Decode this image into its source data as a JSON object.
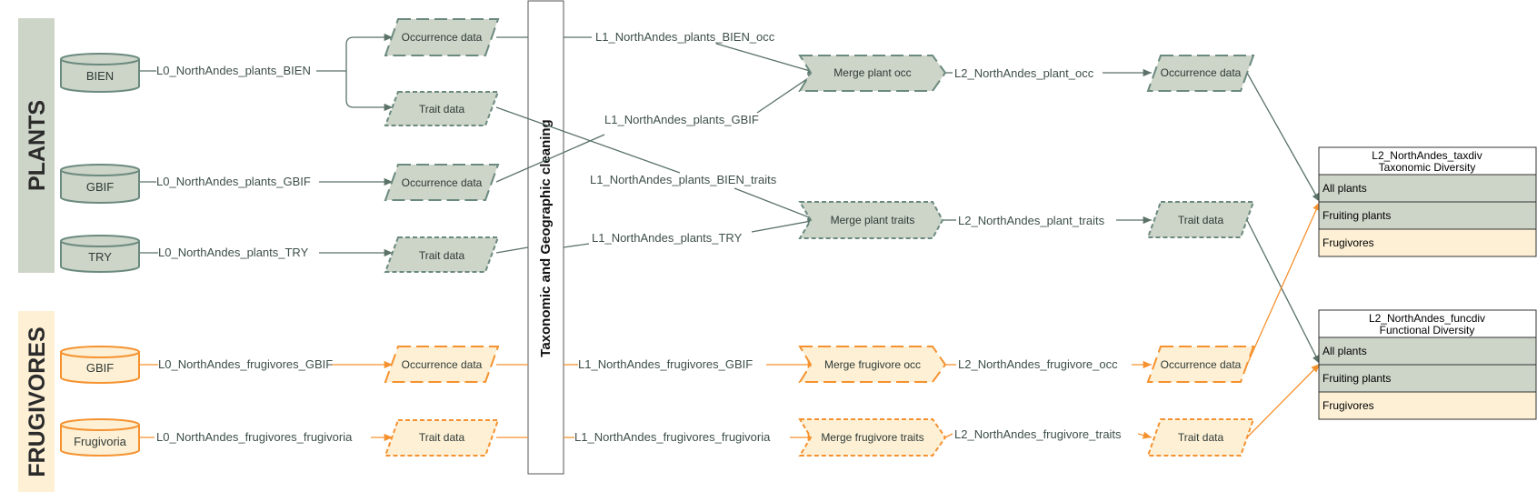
{
  "colors": {
    "plant_fill": "#cdd4c8",
    "plant_stroke": "#6b8a7f",
    "plant_line": "#5a7268",
    "frug_fill": "#fdf0d5",
    "frug_stroke": "#f5922f",
    "frug_line": "#f5922f",
    "group_band": "#cdd4c8",
    "group_band_frug": "#fdf0d5"
  },
  "groups": {
    "plants": "PLANTS",
    "frugivores": "FRUGIVORES"
  },
  "cleaning_box": "Taxonomic and Geographic cleaning",
  "sources": {
    "bien": "BIEN",
    "gbif_plants": "GBIF",
    "try": "TRY",
    "gbif_frug": "GBIF",
    "frugivoria": "Frugivoria"
  },
  "l0_labels": {
    "bien": "L0_NorthAndes_plants_BIEN",
    "gbif_plants": "L0_NorthAndes_plants_GBIF",
    "try": "L0_NorthAndes_plants_TRY",
    "gbif_frug": "L0_NorthAndes_frugivores_GBIF",
    "frugivoria": "L0_NorthAndes_frugivores_frugivoria"
  },
  "data_nodes": {
    "bien_occ": "Occurrence data",
    "bien_trait": "Trait data",
    "gbif_occ": "Occurrence data",
    "try_trait": "Trait data",
    "frug_occ": "Occurrence data",
    "frug_trait": "Trait data",
    "l2_plant_occ": "Occurrence data",
    "l2_plant_trait": "Trait data",
    "l2_frug_occ": "Occurrence data",
    "l2_frug_trait": "Trait data"
  },
  "l1_labels": {
    "bien_occ": "L1_NorthAndes_plants_BIEN_occ",
    "gbif": "L1_NorthAndes_plants_GBIF",
    "bien_traits": "L1_NorthAndes_plants_BIEN_traits",
    "try": "L1_NorthAndes_plants_TRY",
    "frug_gbif": "L1_NorthAndes_frugivores_GBIF",
    "frug_frugivoria": "L1_NorthAndes_frugivores_frugivoria"
  },
  "merge_nodes": {
    "plant_occ": "Merge plant occ",
    "plant_traits": "Merge plant traits",
    "frug_occ": "Merge frugivore occ",
    "frug_traits": "Merge frugivore traits"
  },
  "l2_labels": {
    "plant_occ": "L2_NorthAndes_plant_occ",
    "plant_traits": "L2_NorthAndes_plant_traits",
    "frug_occ": "L2_NorthAndes_frugivore_occ",
    "frug_traits": "L2_NorthAndes_frugivore_traits"
  },
  "outputs": {
    "taxdiv": {
      "title": "L2_NorthAndes_taxdiv",
      "subtitle": "Taxonomic Diversity",
      "rows": [
        "All plants",
        "Fruiting plants",
        "Frugivores"
      ]
    },
    "funcdiv": {
      "title": "L2_NorthAndes_funcdiv",
      "subtitle": "Functional Diversity",
      "rows": [
        "All plants",
        "Fruiting plants",
        "Frugivores"
      ]
    }
  }
}
